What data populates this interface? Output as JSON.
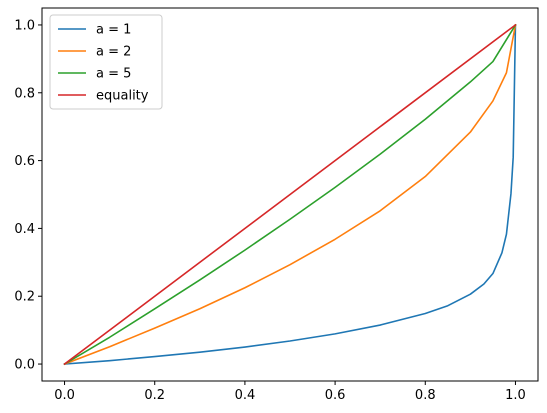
{
  "chart_data": {
    "type": "line",
    "title": "",
    "xlabel": "",
    "ylabel": "",
    "xlim": [
      -0.05,
      1.05
    ],
    "ylim": [
      -0.05,
      1.05
    ],
    "grid": false,
    "legend_position": "top-left",
    "x_ticks": [
      {
        "value": 0.0,
        "label": "0.0"
      },
      {
        "value": 0.2,
        "label": "0.2"
      },
      {
        "value": 0.4,
        "label": "0.4"
      },
      {
        "value": 0.6,
        "label": "0.6"
      },
      {
        "value": 0.8,
        "label": "0.8"
      },
      {
        "value": 1.0,
        "label": "1.0"
      }
    ],
    "y_ticks": [
      {
        "value": 0.0,
        "label": "0.0"
      },
      {
        "value": 0.2,
        "label": "0.2"
      },
      {
        "value": 0.4,
        "label": "0.4"
      },
      {
        "value": 0.6,
        "label": "0.6"
      },
      {
        "value": 0.8,
        "label": "0.8"
      },
      {
        "value": 1.0,
        "label": "1.0"
      }
    ],
    "series": [
      {
        "name": "a = 1",
        "legend_label": "a = 1",
        "color": "#1f77b4",
        "x": [
          0.0,
          0.1,
          0.2,
          0.3,
          0.4,
          0.5,
          0.6,
          0.7,
          0.8,
          0.85,
          0.9,
          0.93,
          0.95,
          0.97,
          0.98,
          0.99,
          0.995,
          1.0
        ],
        "y": [
          0.0,
          0.01,
          0.022,
          0.035,
          0.05,
          0.068,
          0.089,
          0.115,
          0.149,
          0.172,
          0.206,
          0.236,
          0.267,
          0.328,
          0.383,
          0.502,
          0.61,
          1.0
        ]
      },
      {
        "name": "a = 2",
        "legend_label": "a = 2",
        "color": "#ff7f0e",
        "x": [
          0.0,
          0.1,
          0.2,
          0.3,
          0.4,
          0.5,
          0.6,
          0.7,
          0.8,
          0.9,
          0.95,
          0.98,
          1.0
        ],
        "y": [
          0.0,
          0.051,
          0.106,
          0.163,
          0.225,
          0.293,
          0.368,
          0.452,
          0.553,
          0.684,
          0.776,
          0.859,
          1.0
        ]
      },
      {
        "name": "a = 5",
        "legend_label": "a = 5",
        "color": "#2ca02c",
        "x": [
          0.0,
          0.1,
          0.2,
          0.3,
          0.4,
          0.5,
          0.6,
          0.7,
          0.8,
          0.9,
          0.95,
          1.0
        ],
        "y": [
          0.0,
          0.079,
          0.163,
          0.248,
          0.336,
          0.427,
          0.521,
          0.619,
          0.722,
          0.832,
          0.892,
          1.0
        ]
      },
      {
        "name": "equality",
        "legend_label": "equality",
        "color": "#d62728",
        "x": [
          0.0,
          1.0
        ],
        "y": [
          0.0,
          1.0
        ]
      }
    ]
  }
}
